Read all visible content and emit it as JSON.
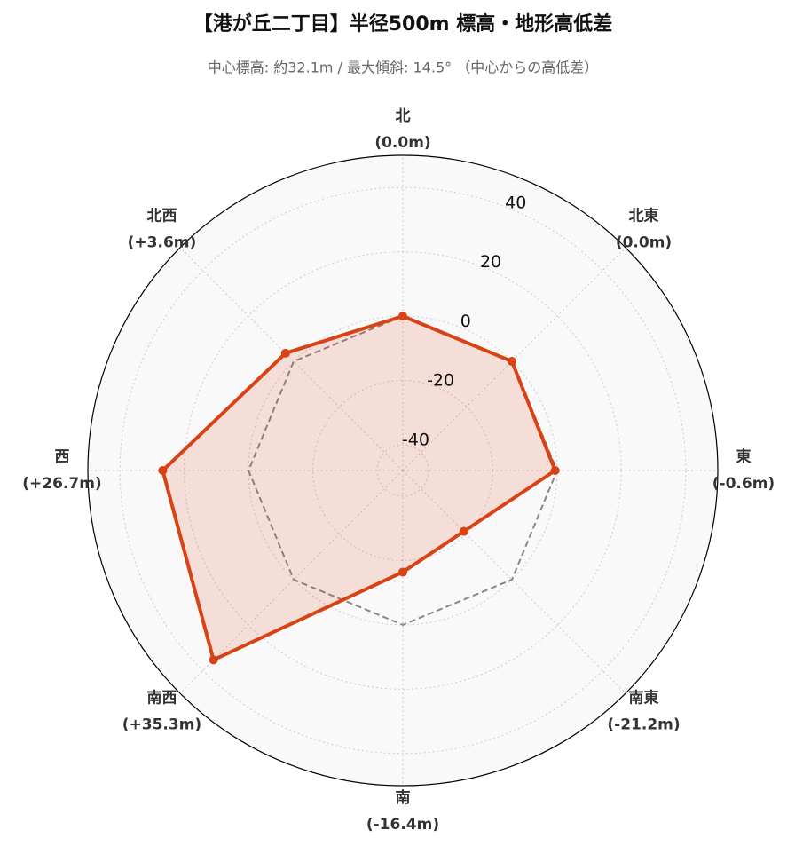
{
  "chart_data": {
    "type": "radar",
    "title": "【港が丘二丁目】半径500m 標高・地形高低差",
    "subtitle": "中心標高: 約32.1m / 最大傾斜: 14.5° （中心からの高低差）",
    "categories": [
      "北",
      "北東",
      "東",
      "南東",
      "南",
      "南西",
      "西",
      "北西"
    ],
    "values": [
      0.0,
      0.0,
      -0.6,
      -21.2,
      -16.4,
      35.3,
      26.7,
      3.6
    ],
    "value_labels": [
      "(0.0m)",
      "(0.0m)",
      "(-0.6m)",
      "(-21.2m)",
      "(-16.4m)",
      "(+35.3m)",
      "(+26.7m)",
      "(+3.6m)"
    ],
    "color": "#d84315",
    "reference": {
      "value": 0,
      "color": "#888888"
    },
    "ylim": [
      -48,
      50
    ],
    "yticks": [
      -40,
      -20,
      0,
      20,
      40
    ],
    "grid": true
  }
}
